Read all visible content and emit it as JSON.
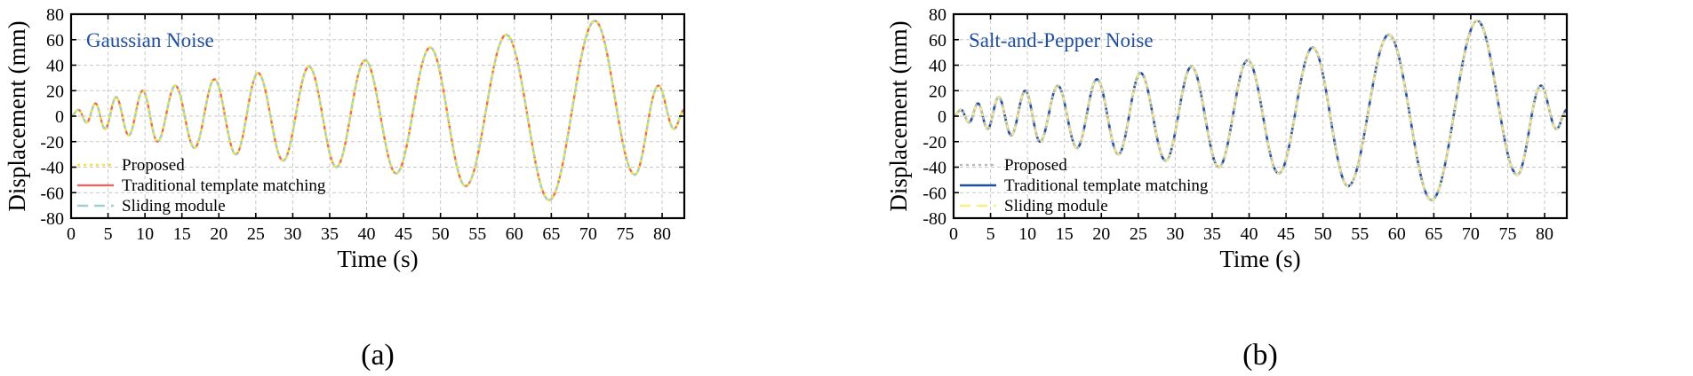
{
  "chart_data": [
    {
      "type": "line",
      "panel_label": "(a)",
      "annotation": "Gaussian Noise",
      "annotation_color": "#1f4e9a",
      "xlabel": "Time (s)",
      "ylabel": "Displacement (mm)",
      "xlim": [
        0,
        83
      ],
      "ylim": [
        -80,
        80
      ],
      "xticks": [
        0,
        5,
        10,
        15,
        20,
        25,
        30,
        35,
        40,
        45,
        50,
        55,
        60,
        65,
        70,
        75,
        80
      ],
      "yticks": [
        -80,
        -60,
        -40,
        -20,
        0,
        20,
        40,
        60,
        80
      ],
      "grid": true,
      "legend_position": "lower-left",
      "x": [
        0,
        1.0,
        2.1,
        3.3,
        4.6,
        6.1,
        7.8,
        9.7,
        11.7,
        14.1,
        16.7,
        19.4,
        22.3,
        25.3,
        28.7,
        32.2,
        35.9,
        39.8,
        44.0,
        48.6,
        53.4,
        58.9,
        64.7,
        70.9,
        76.3,
        79.5,
        81.6,
        83.0
      ],
      "series": [
        {
          "name": "Proposed",
          "color": "#f5e43a",
          "dash": "3 4",
          "width": 2.4,
          "values": [
            0,
            5,
            -5,
            10,
            -10,
            15,
            -15,
            20,
            -20,
            24,
            -25,
            29,
            -30,
            34,
            -35,
            39,
            -40,
            44,
            -45,
            54,
            -55,
            64,
            -66,
            75,
            -46,
            24,
            -10,
            5
          ]
        },
        {
          "name": "Traditional template matching",
          "color": "#e46a6a",
          "dash": "",
          "width": 2.4,
          "values": [
            0,
            5,
            -5,
            10,
            -10,
            15,
            -15,
            20,
            -20,
            24,
            -25,
            29,
            -30,
            34,
            -35,
            39,
            -40,
            44,
            -45,
            54,
            -55,
            64,
            -66,
            75,
            -46,
            24,
            -10,
            5
          ]
        },
        {
          "name": "Sliding module",
          "color": "#9fd0cc",
          "dash": "12 7",
          "width": 2.4,
          "values": [
            0,
            5,
            -5,
            10,
            -10,
            15,
            -15,
            20,
            -20,
            24,
            -25,
            29,
            -30,
            34,
            -35,
            39,
            -40,
            44,
            -45,
            54,
            -55,
            64,
            -66,
            75,
            -46,
            24,
            -10,
            5
          ]
        }
      ]
    },
    {
      "type": "line",
      "panel_label": "(b)",
      "annotation": "Salt-and-Pepper Noise",
      "annotation_color": "#1f4e9a",
      "xlabel": "Time (s)",
      "ylabel": "Displacement (mm)",
      "xlim": [
        0,
        83
      ],
      "ylim": [
        -80,
        80
      ],
      "xticks": [
        0,
        5,
        10,
        15,
        20,
        25,
        30,
        35,
        40,
        45,
        50,
        55,
        60,
        65,
        70,
        75,
        80
      ],
      "yticks": [
        -80,
        -60,
        -40,
        -20,
        0,
        20,
        40,
        60,
        80
      ],
      "grid": true,
      "legend_position": "lower-left",
      "x": [
        0,
        1.0,
        2.1,
        3.3,
        4.6,
        6.1,
        7.8,
        9.7,
        11.7,
        14.1,
        16.7,
        19.4,
        22.3,
        25.3,
        28.7,
        32.2,
        35.9,
        39.8,
        44.0,
        48.6,
        53.4,
        58.9,
        64.7,
        70.9,
        76.3,
        79.5,
        81.6,
        83.0
      ],
      "series": [
        {
          "name": "Proposed",
          "color": "#b8b8b8",
          "dash": "3 4",
          "width": 2.2,
          "values": [
            0,
            5,
            -5,
            10,
            -10,
            15,
            -15,
            20,
            -20,
            24,
            -25,
            29,
            -30,
            34,
            -35,
            39,
            -40,
            44,
            -45,
            54,
            -55,
            64,
            -66,
            75,
            -46,
            24,
            -10,
            5
          ]
        },
        {
          "name": "Traditional template matching",
          "color": "#1f4e9a",
          "dash": "",
          "width": 2.6,
          "values": [
            0,
            5,
            -5,
            10,
            -10,
            15,
            -15,
            20,
            -20,
            24,
            -25,
            29,
            -30,
            34,
            -35,
            39,
            -40,
            44,
            -45,
            54,
            -55,
            64,
            -66,
            75,
            -46,
            24,
            -10,
            5
          ]
        },
        {
          "name": "Sliding module",
          "color": "#f7ef86",
          "dash": "12 7",
          "width": 2.4,
          "values": [
            0,
            5,
            -5,
            10,
            -10,
            15,
            -15,
            20,
            -20,
            24,
            -25,
            29,
            -30,
            34,
            -35,
            39,
            -40,
            44,
            -45,
            54,
            -55,
            64,
            -66,
            75,
            -46,
            24,
            -10,
            5
          ]
        }
      ]
    }
  ]
}
